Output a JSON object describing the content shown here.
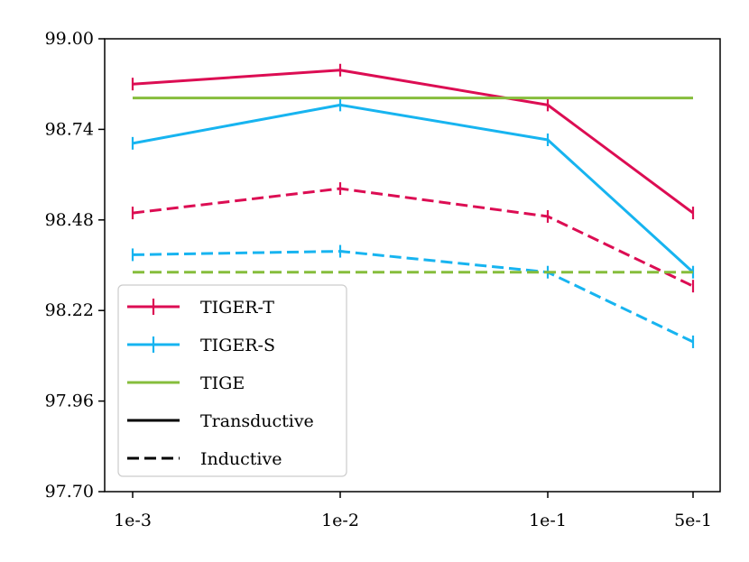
{
  "chart_data": {
    "type": "line",
    "x_categories": [
      "1e-3",
      "1e-2",
      "1e-1",
      "5e-1"
    ],
    "ylim": [
      97.7,
      99.0
    ],
    "y_ticks": [
      "97.70",
      "97.96",
      "98.22",
      "98.48",
      "98.74",
      "99.00"
    ],
    "xlabel": "",
    "ylabel": "",
    "title": "",
    "grid": false,
    "legend_position": "lower-left",
    "series": [
      {
        "name": "TIGER-T",
        "setting": "Transductive",
        "color": "#dc0d53",
        "style": "solid",
        "errorbars": true,
        "values": [
          98.87,
          98.91,
          98.81,
          98.5
        ]
      },
      {
        "name": "TIGER-S",
        "setting": "Transductive",
        "color": "#17b4f0",
        "style": "solid",
        "errorbars": true,
        "values": [
          98.7,
          98.81,
          98.71,
          98.33
        ]
      },
      {
        "name": "TIGE",
        "setting": "Transductive",
        "color": "#86bd3c",
        "style": "solid",
        "errorbars": false,
        "values": [
          98.83,
          98.83,
          98.83,
          98.83
        ]
      },
      {
        "name": "TIGER-T",
        "setting": "Inductive",
        "color": "#dc0d53",
        "style": "dashed",
        "errorbars": true,
        "values": [
          98.5,
          98.57,
          98.49,
          98.29
        ]
      },
      {
        "name": "TIGER-S",
        "setting": "Inductive",
        "color": "#17b4f0",
        "style": "dashed",
        "errorbars": true,
        "values": [
          98.38,
          98.39,
          98.33,
          98.13
        ]
      },
      {
        "name": "TIGE",
        "setting": "Inductive",
        "color": "#86bd3c",
        "style": "dashed",
        "errorbars": false,
        "values": [
          98.33,
          98.33,
          98.33,
          98.33
        ]
      }
    ],
    "legend": [
      {
        "label": "TIGER-T",
        "color": "#dc0d53",
        "style": "solid",
        "marker": "errorbar"
      },
      {
        "label": "TIGER-S",
        "color": "#17b4f0",
        "style": "solid",
        "marker": "errorbar"
      },
      {
        "label": "TIGE",
        "color": "#86bd3c",
        "style": "solid",
        "marker": "none"
      },
      {
        "label": "Transductive",
        "color": "#000000",
        "style": "solid",
        "marker": "none"
      },
      {
        "label": "Inductive",
        "color": "#000000",
        "style": "dashed",
        "marker": "none"
      }
    ]
  }
}
